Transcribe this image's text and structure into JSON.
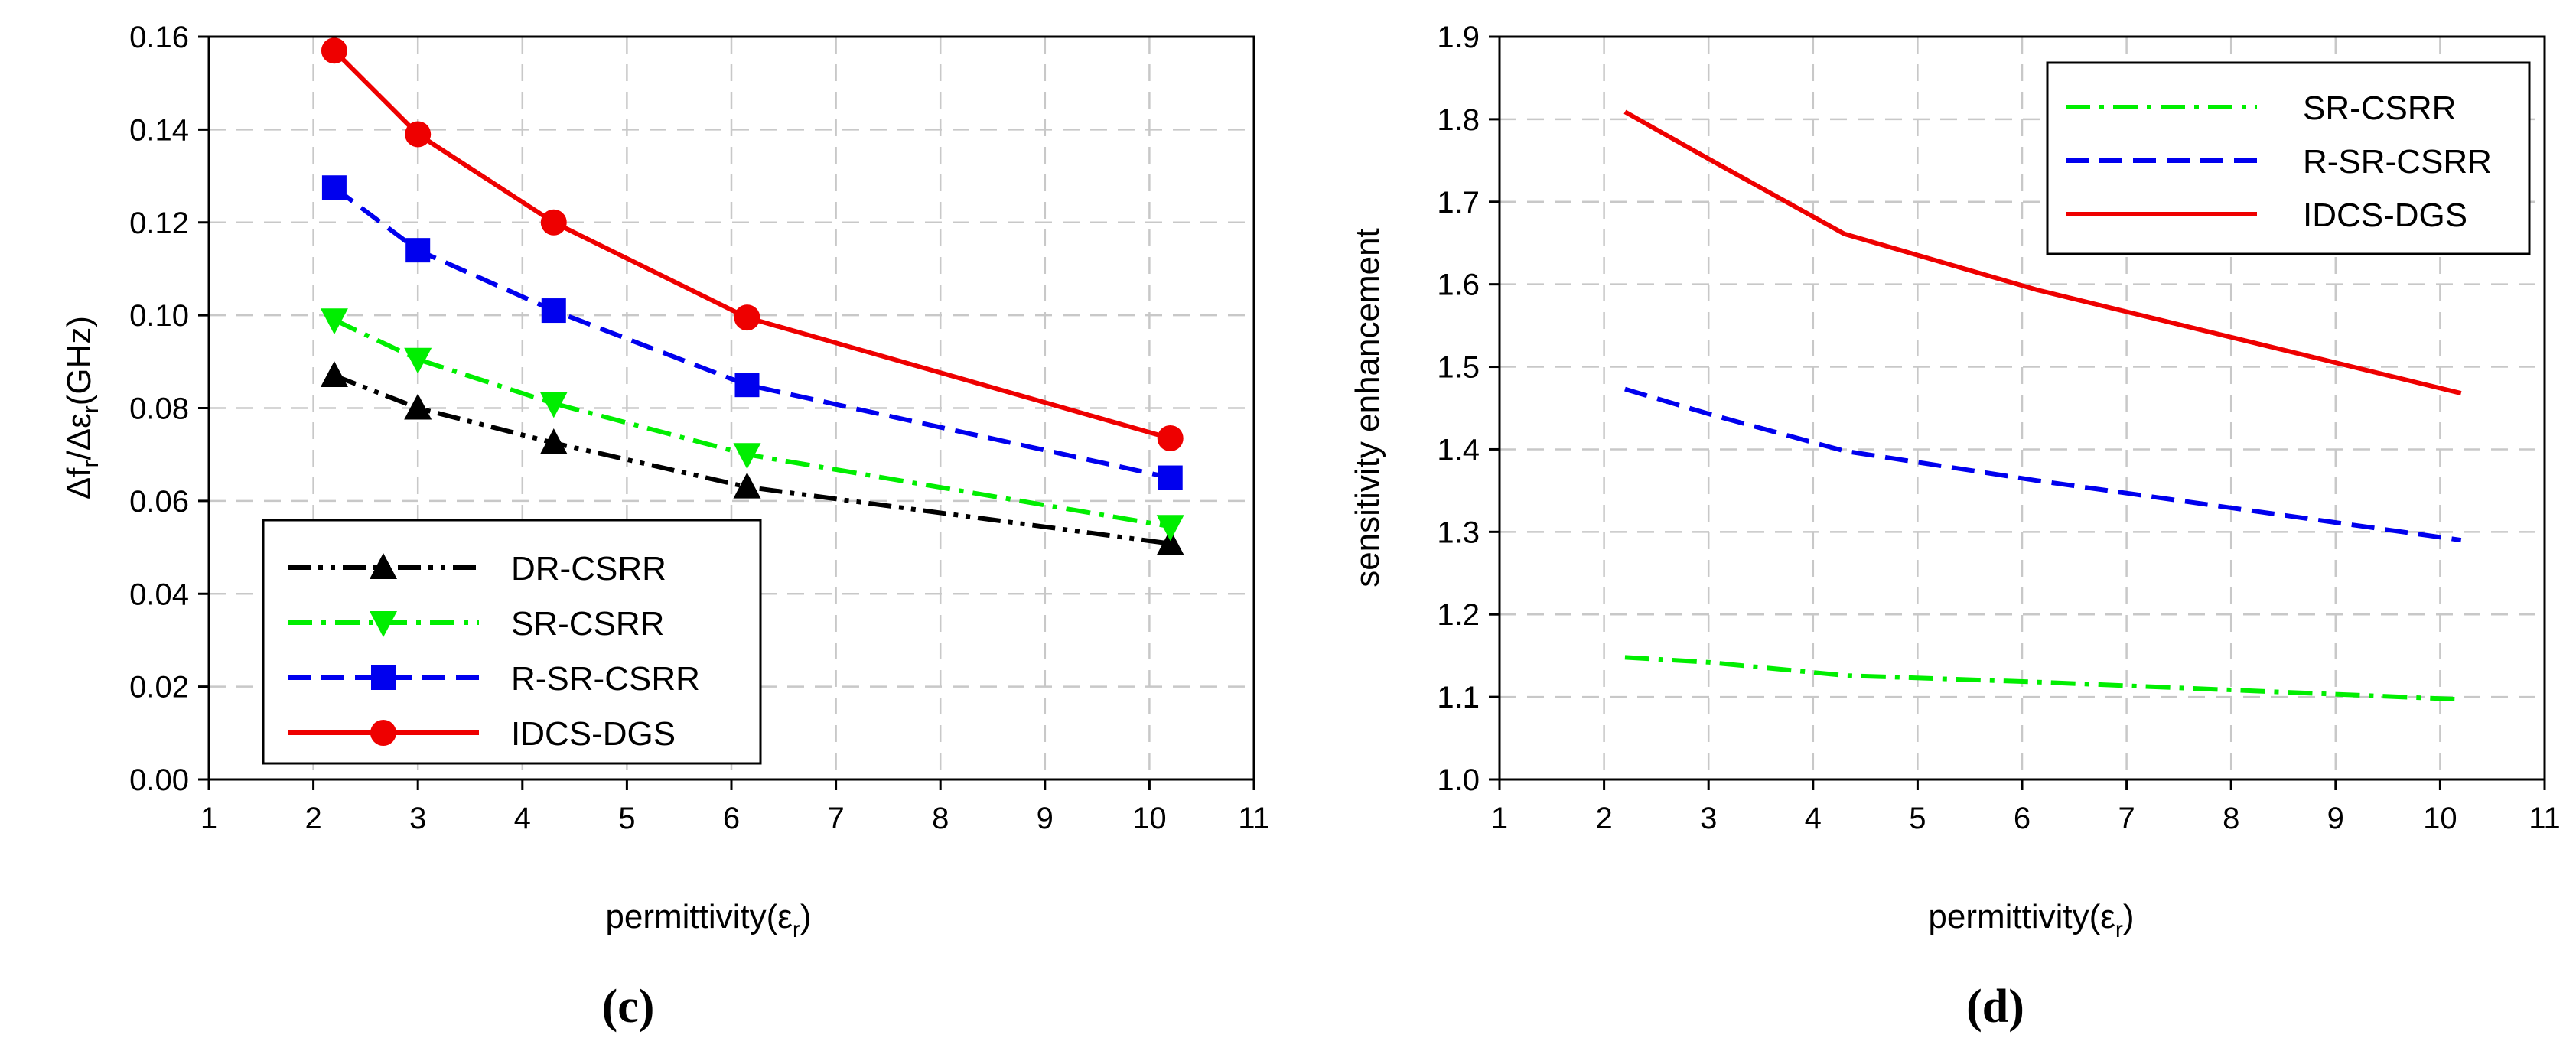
{
  "chart_data": [
    {
      "type": "line",
      "panel_label": "(c)",
      "ylabel_main": "Δf",
      "ylabel_sub1": "r",
      "ylabel_mid": "/Δε",
      "ylabel_sub2": "r",
      "ylabel_unit": "(GHz)",
      "xlabel_main": "permittivity(ε",
      "xlabel_sub": "r",
      "xlabel_close": ")",
      "xlim": [
        1,
        11
      ],
      "ylim": [
        0,
        0.16
      ],
      "xticks": [
        "1",
        "2",
        "3",
        "4",
        "5",
        "6",
        "7",
        "8",
        "9",
        "10",
        "11"
      ],
      "yticks": [
        "0.00",
        "0.02",
        "0.04",
        "0.06",
        "0.08",
        "0.10",
        "0.12",
        "0.14",
        "0.16"
      ],
      "x": [
        2.2,
        3.0,
        4.3,
        6.15,
        10.2
      ],
      "legend_position": "bottom-left",
      "series": [
        {
          "name": "DR-CSRR",
          "color": "#000000",
          "dash": "dashdotdot",
          "marker": "triangle-up",
          "values": [
            0.087,
            0.08,
            0.0725,
            0.063,
            0.0508
          ]
        },
        {
          "name": "SR-CSRR",
          "color": "#00ee00",
          "dash": "dashdot",
          "marker": "triangle-down",
          "values": [
            0.099,
            0.0905,
            0.081,
            0.07,
            0.0545
          ]
        },
        {
          "name": "R-SR-CSRR",
          "color": "#0000ee",
          "dash": "dash",
          "marker": "square",
          "values": [
            0.1275,
            0.114,
            0.101,
            0.085,
            0.065
          ]
        },
        {
          "name": "IDCS-DGS",
          "color": "#ee0000",
          "dash": "solid",
          "marker": "circle",
          "values": [
            0.157,
            0.139,
            0.12,
            0.0995,
            0.0735
          ]
        }
      ]
    },
    {
      "type": "line",
      "panel_label": "(d)",
      "ylabel": "sensitivity enhancement",
      "xlabel_main": "permittivity(ε",
      "xlabel_sub": "r",
      "xlabel_close": ")",
      "xlim": [
        1,
        11
      ],
      "ylim": [
        1.0,
        1.9
      ],
      "xticks": [
        "1",
        "2",
        "3",
        "4",
        "5",
        "6",
        "7",
        "8",
        "9",
        "10",
        "11"
      ],
      "yticks": [
        "1.0",
        "1.1",
        "1.2",
        "1.3",
        "1.4",
        "1.5",
        "1.6",
        "1.7",
        "1.8",
        "1.9"
      ],
      "legend_position": "top-right",
      "series": [
        {
          "name": "SR-CSRR",
          "color": "#00ee00",
          "dash": "dashdot",
          "marker": "none",
          "x": [
            2.2,
            3.0,
            4.3,
            6.15,
            10.2
          ],
          "values": [
            1.148,
            1.142,
            1.126,
            1.118,
            1.097
          ]
        },
        {
          "name": "R-SR-CSRR",
          "color": "#0000ee",
          "dash": "dash",
          "marker": "none",
          "x": [
            2.2,
            3.0,
            4.3,
            6.15,
            10.2
          ],
          "values": [
            1.473,
            1.443,
            1.398,
            1.362,
            1.29
          ]
        },
        {
          "name": "IDCS-DGS",
          "color": "#ee0000",
          "dash": "solid",
          "marker": "none",
          "x": [
            2.2,
            3.0,
            4.3,
            6.15,
            10.2
          ],
          "values": [
            1.809,
            1.752,
            1.661,
            1.593,
            1.468
          ]
        }
      ]
    }
  ]
}
